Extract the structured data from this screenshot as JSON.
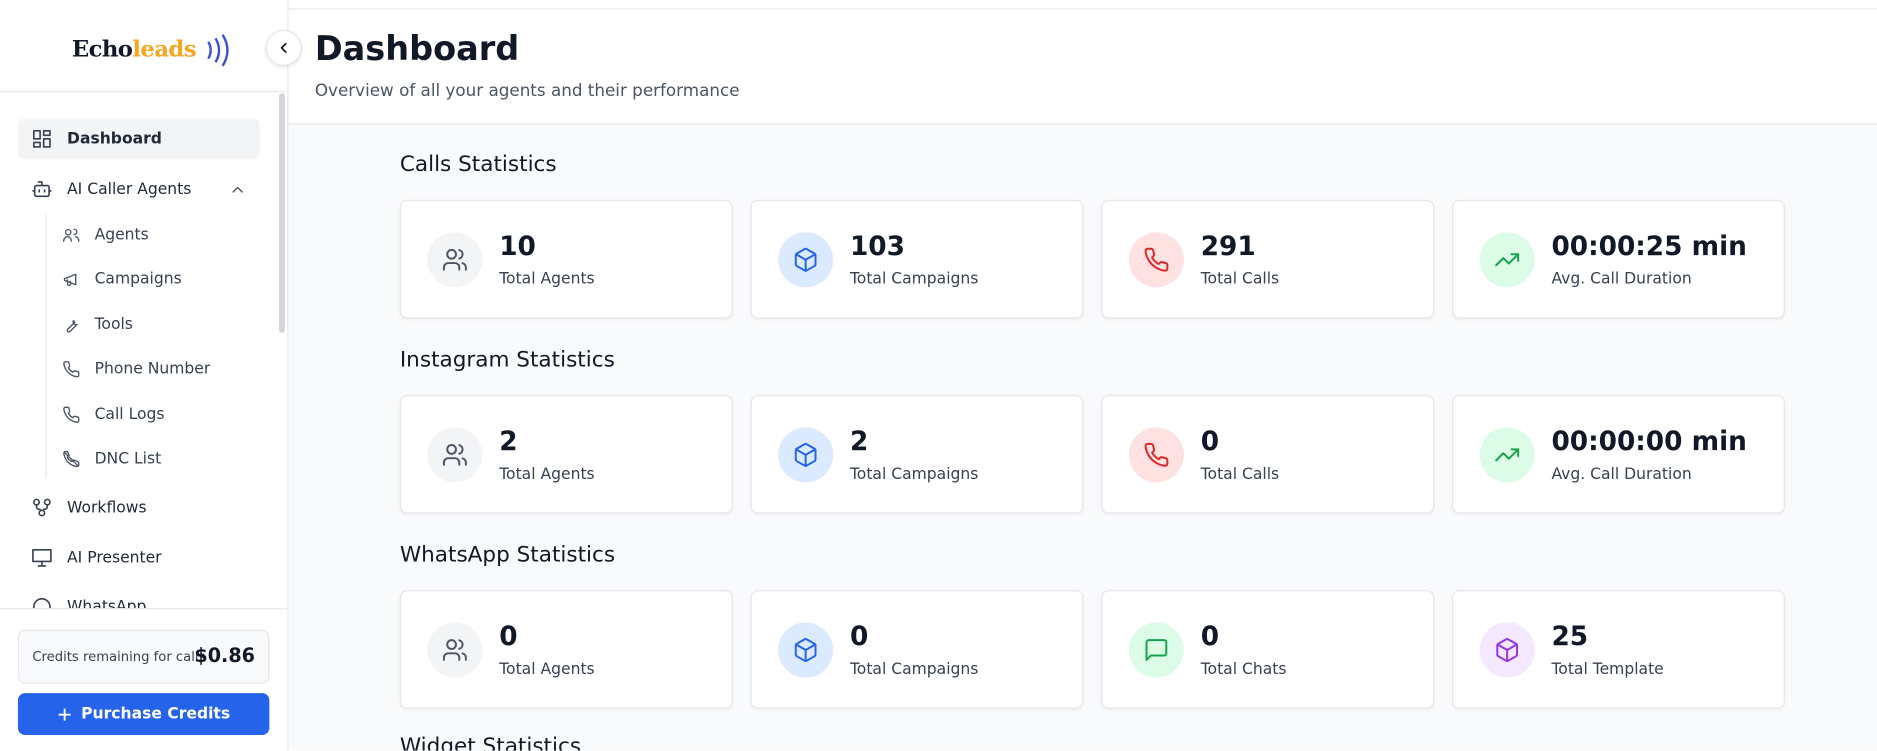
{
  "sidebar": {
    "logo": {
      "part1": "Echo",
      "part2": "leads"
    },
    "nav": [
      {
        "label": "Dashboard"
      },
      {
        "label": "AI Caller Agents"
      }
    ],
    "subnav": [
      {
        "label": "Agents"
      },
      {
        "label": "Campaigns"
      },
      {
        "label": "Tools"
      },
      {
        "label": "Phone Number"
      },
      {
        "label": "Call Logs"
      },
      {
        "label": "DNC List"
      }
    ],
    "nav2": [
      {
        "label": "Workflows"
      },
      {
        "label": "AI Presenter"
      },
      {
        "label": "WhatsApp"
      }
    ],
    "credits": {
      "label": "Credits remaining for calls",
      "amount": "$0.86"
    },
    "button": "Purchase Credits"
  },
  "header": {
    "title": "Dashboard",
    "subtitle": "Overview of all your agents and their performance"
  },
  "sections": [
    {
      "title": "Calls Statistics",
      "cards": [
        {
          "value": "10",
          "label": "Total Agents"
        },
        {
          "value": "103",
          "label": "Total Campaigns"
        },
        {
          "value": "291",
          "label": "Total Calls"
        },
        {
          "value": "00:00:25 min",
          "label": "Avg. Call Duration"
        }
      ]
    },
    {
      "title": "Instagram Statistics",
      "cards": [
        {
          "value": "2",
          "label": "Total Agents"
        },
        {
          "value": "2",
          "label": "Total Campaigns"
        },
        {
          "value": "0",
          "label": "Total Calls"
        },
        {
          "value": "00:00:00 min",
          "label": "Avg. Call Duration"
        }
      ]
    },
    {
      "title": "WhatsApp Statistics",
      "cards": [
        {
          "value": "0",
          "label": "Total Agents"
        },
        {
          "value": "0",
          "label": "Total Campaigns"
        },
        {
          "value": "0",
          "label": "Total Chats"
        },
        {
          "value": "25",
          "label": "Total Template"
        }
      ]
    },
    {
      "title": "Widget Statistics",
      "cards": []
    }
  ]
}
